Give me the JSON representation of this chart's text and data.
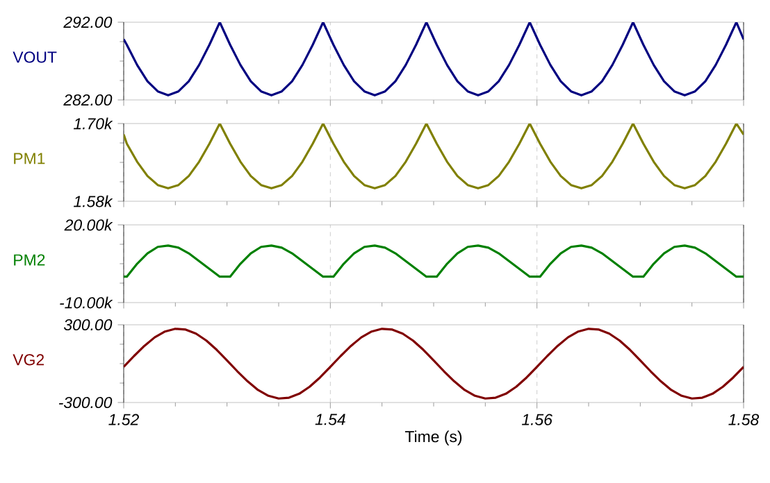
{
  "chart_data": [
    {
      "type": "line",
      "ylabel": "VOUT",
      "grid": "x",
      "tick_labels": "y",
      "xlim": [
        1.52,
        1.58
      ],
      "xticks": [
        1.52,
        1.54,
        1.56,
        1.58
      ],
      "ylim": [
        282,
        292
      ],
      "yticks": [
        {
          "value": 282,
          "label": "282.00"
        },
        {
          "value": 292,
          "label": "292.00"
        }
      ],
      "x": [
        1.52,
        1.5203,
        1.5213,
        1.5223,
        1.5233,
        1.5243,
        1.5253,
        1.5263,
        1.5273,
        1.5283,
        1.5293,
        1.5303,
        1.5313,
        1.5323,
        1.5333,
        1.5343,
        1.5353,
        1.5363,
        1.5373,
        1.5383,
        1.5393,
        1.5403,
        1.5413,
        1.5423,
        1.5433,
        1.5443,
        1.5453,
        1.5463,
        1.5473,
        1.5483,
        1.5493,
        1.5503,
        1.5513,
        1.5523,
        1.5533,
        1.5543,
        1.5553,
        1.5563,
        1.5573,
        1.5583,
        1.5593,
        1.5603,
        1.5613,
        1.5623,
        1.5633,
        1.5643,
        1.5653,
        1.5663,
        1.5673,
        1.5683,
        1.5693,
        1.5703,
        1.5713,
        1.5723,
        1.5733,
        1.5743,
        1.5753,
        1.5763,
        1.5773,
        1.5783,
        1.5793,
        1.58
      ],
      "series": [
        {
          "color": "#000080",
          "values": [
            289.8,
            289.1,
            286.5,
            284.4,
            283.1,
            282.6,
            283.1,
            284.4,
            286.5,
            289.1,
            292,
            289.1,
            286.5,
            284.4,
            283.1,
            282.6,
            283.1,
            284.4,
            286.5,
            289.1,
            292,
            289.1,
            286.5,
            284.4,
            283.1,
            282.6,
            283.1,
            284.4,
            286.5,
            289.1,
            292,
            289.1,
            286.5,
            284.4,
            283.1,
            282.6,
            283.1,
            284.4,
            286.5,
            289.1,
            292,
            289.1,
            286.5,
            284.4,
            283.1,
            282.6,
            283.1,
            284.4,
            286.5,
            289.1,
            292,
            289.1,
            286.5,
            284.4,
            283.1,
            282.6,
            283.1,
            284.4,
            286.5,
            289.1,
            292,
            289.8
          ]
        }
      ]
    },
    {
      "type": "line",
      "ylabel": "PM1",
      "grid": "x",
      "tick_labels": "y",
      "xlim": [
        1.52,
        1.58
      ],
      "xticks": [
        1.52,
        1.54,
        1.56,
        1.58
      ],
      "ylim": [
        1580,
        1700
      ],
      "yticks": [
        {
          "value": 1580,
          "label": "1.58k"
        },
        {
          "value": 1700,
          "label": "1.70k"
        }
      ],
      "x": [
        1.52,
        1.5203,
        1.5213,
        1.5223,
        1.5233,
        1.5243,
        1.5253,
        1.5263,
        1.5273,
        1.5283,
        1.5293,
        1.5303,
        1.5313,
        1.5323,
        1.5333,
        1.5343,
        1.5353,
        1.5363,
        1.5373,
        1.5383,
        1.5393,
        1.5403,
        1.5413,
        1.5423,
        1.5433,
        1.5443,
        1.5453,
        1.5463,
        1.5473,
        1.5483,
        1.5493,
        1.5503,
        1.5513,
        1.5523,
        1.5533,
        1.5543,
        1.5553,
        1.5563,
        1.5573,
        1.5583,
        1.5593,
        1.5603,
        1.5613,
        1.5623,
        1.5633,
        1.5643,
        1.5653,
        1.5663,
        1.5673,
        1.5683,
        1.5693,
        1.5703,
        1.5713,
        1.5723,
        1.5733,
        1.5743,
        1.5753,
        1.5763,
        1.5773,
        1.5783,
        1.5793,
        1.58
      ],
      "series": [
        {
          "color": "#808000",
          "values": [
            1683,
            1669,
            1641,
            1619,
            1605,
            1600,
            1605,
            1619,
            1641,
            1669,
            1700,
            1669,
            1641,
            1619,
            1605,
            1600,
            1605,
            1619,
            1641,
            1669,
            1700,
            1669,
            1641,
            1619,
            1605,
            1600,
            1605,
            1619,
            1641,
            1669,
            1700,
            1669,
            1641,
            1619,
            1605,
            1600,
            1605,
            1619,
            1641,
            1669,
            1700,
            1669,
            1641,
            1619,
            1605,
            1600,
            1605,
            1619,
            1641,
            1669,
            1700,
            1669,
            1641,
            1619,
            1605,
            1600,
            1605,
            1619,
            1641,
            1669,
            1700,
            1683
          ]
        }
      ]
    },
    {
      "type": "line",
      "ylabel": "PM2",
      "grid": "x",
      "tick_labels": "y",
      "xlim": [
        1.52,
        1.58
      ],
      "xticks": [
        1.52,
        1.54,
        1.56,
        1.58
      ],
      "ylim": [
        -10000,
        20000
      ],
      "yticks": [
        {
          "value": -10000,
          "label": "-10.00k"
        },
        {
          "value": 20000,
          "label": "20.00k"
        }
      ],
      "x": [
        1.52,
        1.5203,
        1.5213,
        1.5223,
        1.5233,
        1.5243,
        1.5253,
        1.5263,
        1.5273,
        1.5283,
        1.5293,
        1.5303,
        1.5313,
        1.5323,
        1.5333,
        1.5343,
        1.5353,
        1.5363,
        1.5373,
        1.5383,
        1.5393,
        1.5403,
        1.5413,
        1.5423,
        1.5433,
        1.5443,
        1.5453,
        1.5463,
        1.5473,
        1.5483,
        1.5493,
        1.5503,
        1.5513,
        1.5523,
        1.5533,
        1.5543,
        1.5553,
        1.5563,
        1.5573,
        1.5583,
        1.5593,
        1.5603,
        1.5613,
        1.5623,
        1.5633,
        1.5643,
        1.5653,
        1.5663,
        1.5673,
        1.5683,
        1.5693,
        1.5703,
        1.5713,
        1.5723,
        1.5733,
        1.5743,
        1.5753,
        1.5763,
        1.5773,
        1.5783,
        1.5793,
        1.58
      ],
      "series": [
        {
          "color": "#008000",
          "values": [
            0,
            0,
            5000,
            9000,
            11500,
            12000,
            11200,
            9000,
            6000,
            3000,
            0,
            0,
            5000,
            9000,
            11500,
            12000,
            11200,
            9000,
            6000,
            3000,
            0,
            0,
            5000,
            9000,
            11500,
            12000,
            11200,
            9000,
            6000,
            3000,
            0,
            0,
            5000,
            9000,
            11500,
            12000,
            11200,
            9000,
            6000,
            3000,
            0,
            0,
            5000,
            9000,
            11500,
            12000,
            11200,
            9000,
            6000,
            3000,
            0,
            0,
            5000,
            9000,
            11500,
            12000,
            11200,
            9000,
            6000,
            3000,
            0,
            0
          ]
        }
      ]
    },
    {
      "type": "line",
      "ylabel": "VG2",
      "xlabel": "Time (s)",
      "grid": "x",
      "xlim": [
        1.52,
        1.58
      ],
      "xticks": [
        1.52,
        1.54,
        1.56,
        1.58
      ],
      "ylim": [
        -300,
        300
      ],
      "yticks": [
        {
          "value": -300,
          "label": "-300.00"
        },
        {
          "value": 300,
          "label": "300.00"
        }
      ],
      "x": [
        1.52,
        1.521,
        1.522,
        1.523,
        1.524,
        1.525,
        1.526,
        1.527,
        1.528,
        1.529,
        1.53,
        1.531,
        1.532,
        1.533,
        1.534,
        1.535,
        1.536,
        1.537,
        1.538,
        1.539,
        1.54,
        1.541,
        1.542,
        1.543,
        1.544,
        1.545,
        1.546,
        1.547,
        1.548,
        1.549,
        1.55,
        1.551,
        1.552,
        1.553,
        1.554,
        1.555,
        1.556,
        1.557,
        1.558,
        1.559,
        1.56,
        1.561,
        1.562,
        1.563,
        1.564,
        1.565,
        1.566,
        1.567,
        1.568,
        1.569,
        1.57,
        1.571,
        1.572,
        1.573,
        1.574,
        1.575,
        1.576,
        1.577,
        1.578,
        1.579,
        1.58
      ],
      "series": [
        {
          "color": "#800000",
          "values": [
            -25,
            59,
            137,
            203,
            248,
            269,
            263,
            232,
            178,
            107,
            25,
            -59,
            -137,
            -203,
            -248,
            -269,
            -263,
            -232,
            -178,
            -107,
            -25,
            59,
            137,
            203,
            248,
            269,
            263,
            232,
            178,
            107,
            25,
            -59,
            -137,
            -203,
            -248,
            -269,
            -263,
            -232,
            -178,
            -107,
            -25,
            59,
            137,
            203,
            248,
            269,
            263,
            232,
            178,
            107,
            25,
            -59,
            -137,
            -203,
            -248,
            -269,
            -263,
            -232,
            -178,
            -107,
            -25
          ]
        }
      ]
    }
  ]
}
